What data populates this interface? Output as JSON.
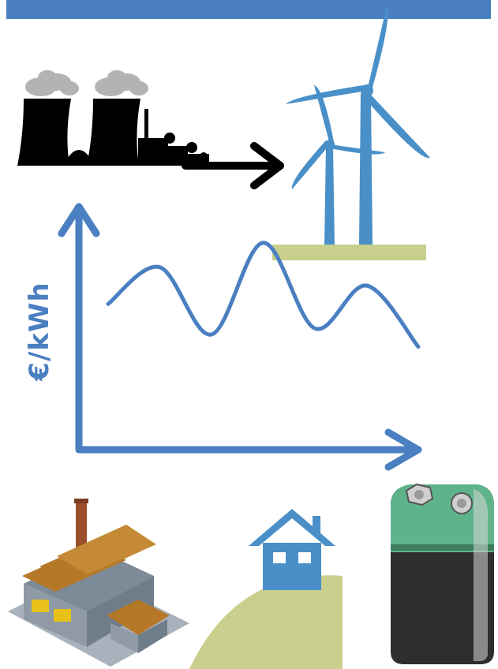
{
  "axis_label": "€/kWh",
  "colors": {
    "accent": "#4a7fc1",
    "wind": "#4a90c8",
    "ground": "#c9cf8c",
    "plant": "#000000",
    "smoke": "#b3b3b3",
    "factory_wall": "#8f9aa6",
    "factory_roof": "#b57828",
    "chimney": "#9c4f2c",
    "house": "#4a8fc8",
    "battery_top": "#5fb38a",
    "battery_body": "#2e2e2e"
  },
  "icons": [
    "coal-plant-icon",
    "wind-turbine-icon",
    "factory-icon",
    "house-icon",
    "battery-icon"
  ],
  "chart_data": {
    "type": "line",
    "ylabel": "€/kWh",
    "xlabel": "",
    "series": [
      {
        "values": [
          0.45,
          0.75,
          0.2,
          0.95,
          0.25,
          0.6,
          0.1
        ]
      }
    ]
  }
}
